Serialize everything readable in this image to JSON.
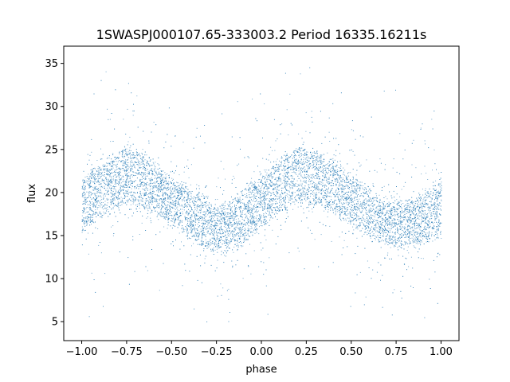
{
  "chart_data": {
    "type": "scatter",
    "title": "1SWASPJ000107.65-333003.2 Period 16335.16211s",
    "xlabel": "phase",
    "ylabel": "flux",
    "xlim": [
      -1.1,
      1.1
    ],
    "ylim": [
      2.8,
      37.0
    ],
    "x_ticks": [
      -1.0,
      -0.75,
      -0.5,
      -0.25,
      0.0,
      0.25,
      0.5,
      0.75,
      1.0
    ],
    "x_tick_labels": [
      "−1.00",
      "−0.75",
      "−0.50",
      "−0.25",
      "0.00",
      "0.25",
      "0.50",
      "0.75",
      "1.00"
    ],
    "y_ticks": [
      5,
      10,
      15,
      20,
      25,
      30,
      35
    ],
    "y_tick_labels": [
      "5",
      "10",
      "15",
      "20",
      "25",
      "30",
      "35"
    ],
    "grid": false,
    "legend": "none",
    "marker_color": "#1f77b4",
    "series": [
      {
        "x": [
          -1.0,
          -0.95,
          -0.9,
          -0.85,
          -0.8,
          -0.75,
          -0.7,
          -0.65,
          -0.6,
          -0.55,
          -0.5,
          -0.45,
          -0.4,
          -0.35,
          -0.3,
          -0.25,
          -0.2,
          -0.15,
          -0.1,
          -0.05,
          0.0,
          0.05,
          0.1,
          0.15,
          0.2,
          0.25,
          0.3,
          0.35,
          0.4,
          0.45,
          0.5,
          0.55,
          0.6,
          0.65,
          0.7,
          0.75,
          0.8,
          0.85,
          0.9,
          0.95,
          1.0
        ],
        "y": [
          18.5,
          19.5,
          20.3,
          21.0,
          21.6,
          21.9,
          21.8,
          21.3,
          20.5,
          19.7,
          19.0,
          18.3,
          17.5,
          16.8,
          16.2,
          15.9,
          16.1,
          16.6,
          17.3,
          18.2,
          19.1,
          20.0,
          20.8,
          21.4,
          21.8,
          21.9,
          21.7,
          21.3,
          20.7,
          20.0,
          19.2,
          18.4,
          17.6,
          17.0,
          16.6,
          16.4,
          16.5,
          16.8,
          17.1,
          17.6,
          18.3
        ],
        "band_half_width": [
          3.2,
          3.1,
          3.0,
          3.0,
          3.1,
          3.2,
          3.3,
          3.1,
          2.8,
          2.6,
          2.5,
          2.6,
          2.8,
          2.8,
          2.6,
          2.3,
          2.5,
          2.8,
          3.0,
          3.0,
          2.9,
          2.9,
          3.0,
          3.1,
          3.3,
          3.3,
          3.2,
          3.0,
          2.8,
          2.7,
          2.8,
          2.8,
          2.7,
          2.5,
          2.5,
          2.5,
          2.5,
          2.6,
          2.8,
          3.0,
          3.2
        ],
        "scatter_range": [
          4.2,
          35.3
        ]
      }
    ]
  }
}
